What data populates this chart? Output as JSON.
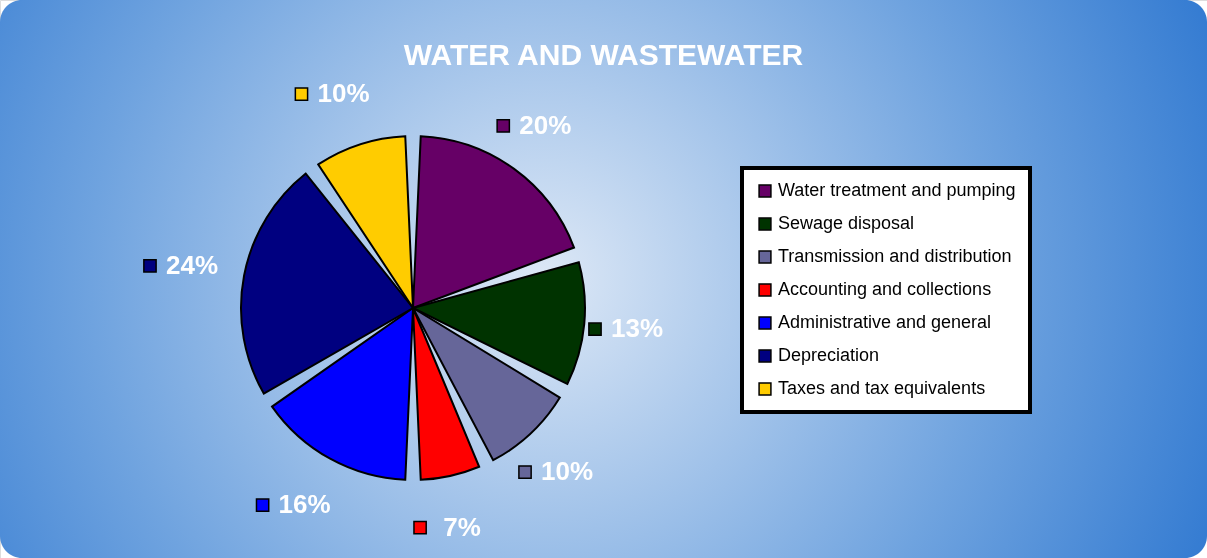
{
  "chart_data": {
    "type": "pie",
    "title": "WATER AND WASTEWATER",
    "categories": [
      "Water treatment and pumping",
      "Sewage disposal",
      "Transmission and distribution",
      "Accounting and collections",
      "Administrative and general",
      "Depreciation",
      "Taxes and tax equivalents"
    ],
    "values": [
      20,
      13,
      10,
      7,
      16,
      24,
      10
    ],
    "value_labels": [
      "20%",
      "13%",
      "10%",
      "7%",
      "16%",
      "24%",
      "10%"
    ],
    "colors": [
      "#660066",
      "#003300",
      "#666699",
      "#ff0000",
      "#0000ff",
      "#000080",
      "#ffcc00"
    ],
    "legend": "right"
  }
}
